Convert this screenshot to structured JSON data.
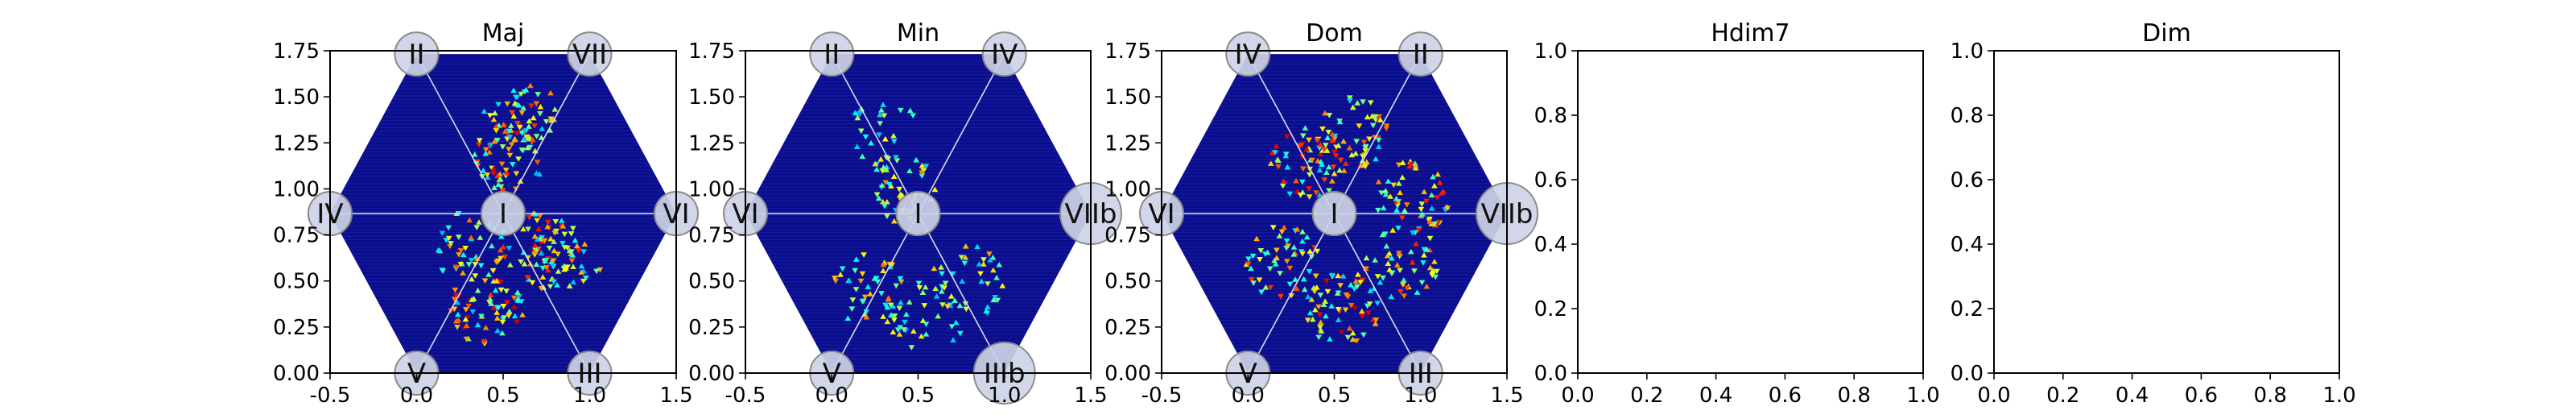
{
  "figure": {
    "background": "#ffffff"
  },
  "chart_data": [
    {
      "type": "heatmap",
      "title": "Maj",
      "xlim": [
        -0.5,
        1.5
      ],
      "ylim": [
        0.0,
        1.75
      ],
      "xticks": [
        "-0.5",
        "0.0",
        "0.5",
        "1.0",
        "1.5"
      ],
      "yticks": [
        "0.00",
        "0.25",
        "0.50",
        "0.75",
        "1.00",
        "1.25",
        "1.50",
        "1.75"
      ],
      "grid": false,
      "center_label": "I",
      "vertex_labels": [
        "VI",
        "VII",
        "II",
        "IV",
        "V",
        "III"
      ],
      "hot_spots": [
        {
          "x": 0.55,
          "y": 1.17,
          "intensity": 0.9
        },
        {
          "x": 0.6,
          "y": 1.4,
          "intensity": 0.7
        },
        {
          "x": 0.72,
          "y": 0.68,
          "intensity": 0.8
        },
        {
          "x": 0.4,
          "y": 0.35,
          "intensity": 0.95
        },
        {
          "x": 0.85,
          "y": 0.6,
          "intensity": 0.5
        },
        {
          "x": 0.3,
          "y": 0.7,
          "intensity": 0.6
        }
      ]
    },
    {
      "type": "heatmap",
      "title": "Min",
      "xlim": [
        -0.5,
        1.5
      ],
      "ylim": [
        0.0,
        1.75
      ],
      "xticks": [
        "-0.5",
        "0.0",
        "0.5",
        "1.0",
        "1.5"
      ],
      "yticks": [
        "0.00",
        "0.25",
        "0.50",
        "0.75",
        "1.00",
        "1.25",
        "1.50",
        "1.75"
      ],
      "grid": false,
      "center_label": "I",
      "vertex_labels": [
        "VIIb",
        "IV",
        "II",
        "VI",
        "V",
        "IIIb"
      ],
      "hot_spots": [
        {
          "x": 0.4,
          "y": 1.0,
          "intensity": 0.5
        },
        {
          "x": 0.22,
          "y": 0.45,
          "intensity": 0.55
        },
        {
          "x": 0.55,
          "y": 0.3,
          "intensity": 0.35
        },
        {
          "x": 0.8,
          "y": 0.5,
          "intensity": 0.45
        },
        {
          "x": 0.3,
          "y": 1.3,
          "intensity": 0.25
        }
      ]
    },
    {
      "type": "heatmap",
      "title": "Dom",
      "xlim": [
        -0.5,
        1.5
      ],
      "ylim": [
        0.0,
        1.75
      ],
      "xticks": [
        "-0.5",
        "0.0",
        "0.5",
        "1.0",
        "1.5"
      ],
      "yticks": [
        "0.00",
        "0.25",
        "0.50",
        "0.75",
        "1.00",
        "1.25",
        "1.50",
        "1.75"
      ],
      "grid": false,
      "center_label": "I",
      "vertex_labels": [
        "VIIb",
        "II",
        "IV",
        "VI",
        "V",
        "III"
      ],
      "hot_spots": [
        {
          "x": 0.35,
          "y": 1.15,
          "intensity": 0.85
        },
        {
          "x": 0.6,
          "y": 1.3,
          "intensity": 0.7
        },
        {
          "x": 0.95,
          "y": 0.95,
          "intensity": 0.75
        },
        {
          "x": 0.55,
          "y": 0.35,
          "intensity": 0.9
        },
        {
          "x": 0.2,
          "y": 0.6,
          "intensity": 0.7
        },
        {
          "x": 0.9,
          "y": 0.6,
          "intensity": 0.7
        }
      ]
    },
    {
      "type": "heatmap",
      "title": "Hdim7",
      "xlim": [
        0.0,
        1.0
      ],
      "ylim": [
        0.0,
        1.0
      ],
      "xticks": [
        "0.0",
        "0.2",
        "0.4",
        "0.6",
        "0.8",
        "1.0"
      ],
      "yticks": [
        "0.0",
        "0.2",
        "0.4",
        "0.6",
        "0.8",
        "1.0"
      ],
      "grid": false,
      "empty": true
    },
    {
      "type": "heatmap",
      "title": "Dim",
      "xlim": [
        0.0,
        1.0
      ],
      "ylim": [
        0.0,
        1.0
      ],
      "xticks": [
        "0.0",
        "0.2",
        "0.4",
        "0.6",
        "0.8",
        "1.0"
      ],
      "yticks": [
        "0.0",
        "0.2",
        "0.4",
        "0.6",
        "0.8",
        "1.0"
      ],
      "grid": false,
      "empty": true
    }
  ],
  "colors": {
    "hex_fill": "#0b0e8c",
    "hex_edge": "#1e22a8",
    "spoke": "#d8dcf0",
    "node_fill": "#cdd2e6",
    "node_stroke": "#8a8a8a",
    "axes": "#000000"
  }
}
